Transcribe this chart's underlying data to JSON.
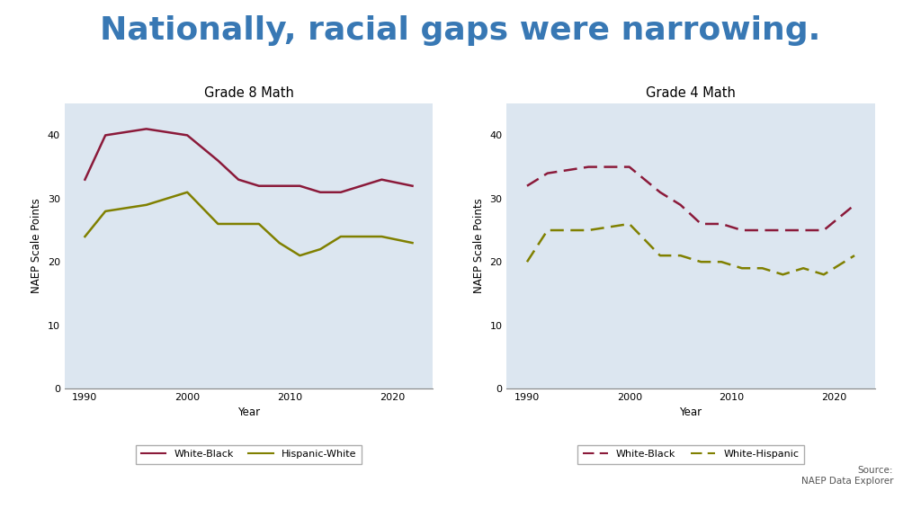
{
  "title": "Nationally, racial gaps were narrowing.",
  "title_color": "#3878b4",
  "title_fontsize": 26,
  "background_color": "#ffffff",
  "plot_bg_color": "#dce6f0",
  "source_text": "Source:\nNAEP Data Explorer",
  "grade8": {
    "subtitle": "Grade 8 Math",
    "ylabel": "NAEP Scale Points",
    "xlabel": "Year",
    "ylim": [
      0,
      45
    ],
    "yticks": [
      0,
      10,
      20,
      30,
      40
    ],
    "xticks": [
      1990,
      2000,
      2010,
      2020
    ],
    "xlim": [
      1988,
      2024
    ],
    "white_black": {
      "years": [
        1990,
        1992,
        1996,
        2000,
        2003,
        2005,
        2007,
        2009,
        2011,
        2013,
        2015,
        2017,
        2019,
        2022
      ],
      "values": [
        33,
        40,
        41,
        40,
        36,
        33,
        32,
        32,
        32,
        31,
        31,
        32,
        33,
        32
      ],
      "color": "#8b1a3a",
      "label": "White-Black",
      "linestyle": "-",
      "linewidth": 1.8
    },
    "hispanic_white": {
      "years": [
        1990,
        1992,
        1996,
        2000,
        2003,
        2005,
        2007,
        2009,
        2011,
        2013,
        2015,
        2017,
        2019,
        2022
      ],
      "values": [
        24,
        28,
        29,
        31,
        26,
        26,
        26,
        23,
        21,
        22,
        24,
        24,
        24,
        23
      ],
      "color": "#808000",
      "label": "Hispanic-White",
      "linestyle": "-",
      "linewidth": 1.8
    }
  },
  "grade4": {
    "subtitle": "Grade 4 Math",
    "ylabel": "NAEP Scale Points",
    "xlabel": "Year",
    "ylim": [
      0,
      45
    ],
    "yticks": [
      0,
      10,
      20,
      30,
      40
    ],
    "xticks": [
      1990,
      2000,
      2010,
      2020
    ],
    "xlim": [
      1988,
      2024
    ],
    "white_black": {
      "years": [
        1990,
        1992,
        1996,
        2000,
        2003,
        2005,
        2007,
        2009,
        2011,
        2013,
        2015,
        2017,
        2019,
        2022
      ],
      "values": [
        32,
        34,
        35,
        35,
        31,
        29,
        26,
        26,
        25,
        25,
        25,
        25,
        25,
        29
      ],
      "color": "#8b1a3a",
      "label": "White-Black",
      "linestyle": "--",
      "linewidth": 1.8
    },
    "white_hispanic": {
      "years": [
        1990,
        1992,
        1996,
        2000,
        2003,
        2005,
        2007,
        2009,
        2011,
        2013,
        2015,
        2017,
        2019,
        2022
      ],
      "values": [
        20,
        25,
        25,
        26,
        21,
        21,
        20,
        20,
        19,
        19,
        18,
        19,
        18,
        21
      ],
      "color": "#808000",
      "label": "White-Hispanic",
      "linestyle": "--",
      "linewidth": 1.8
    }
  }
}
